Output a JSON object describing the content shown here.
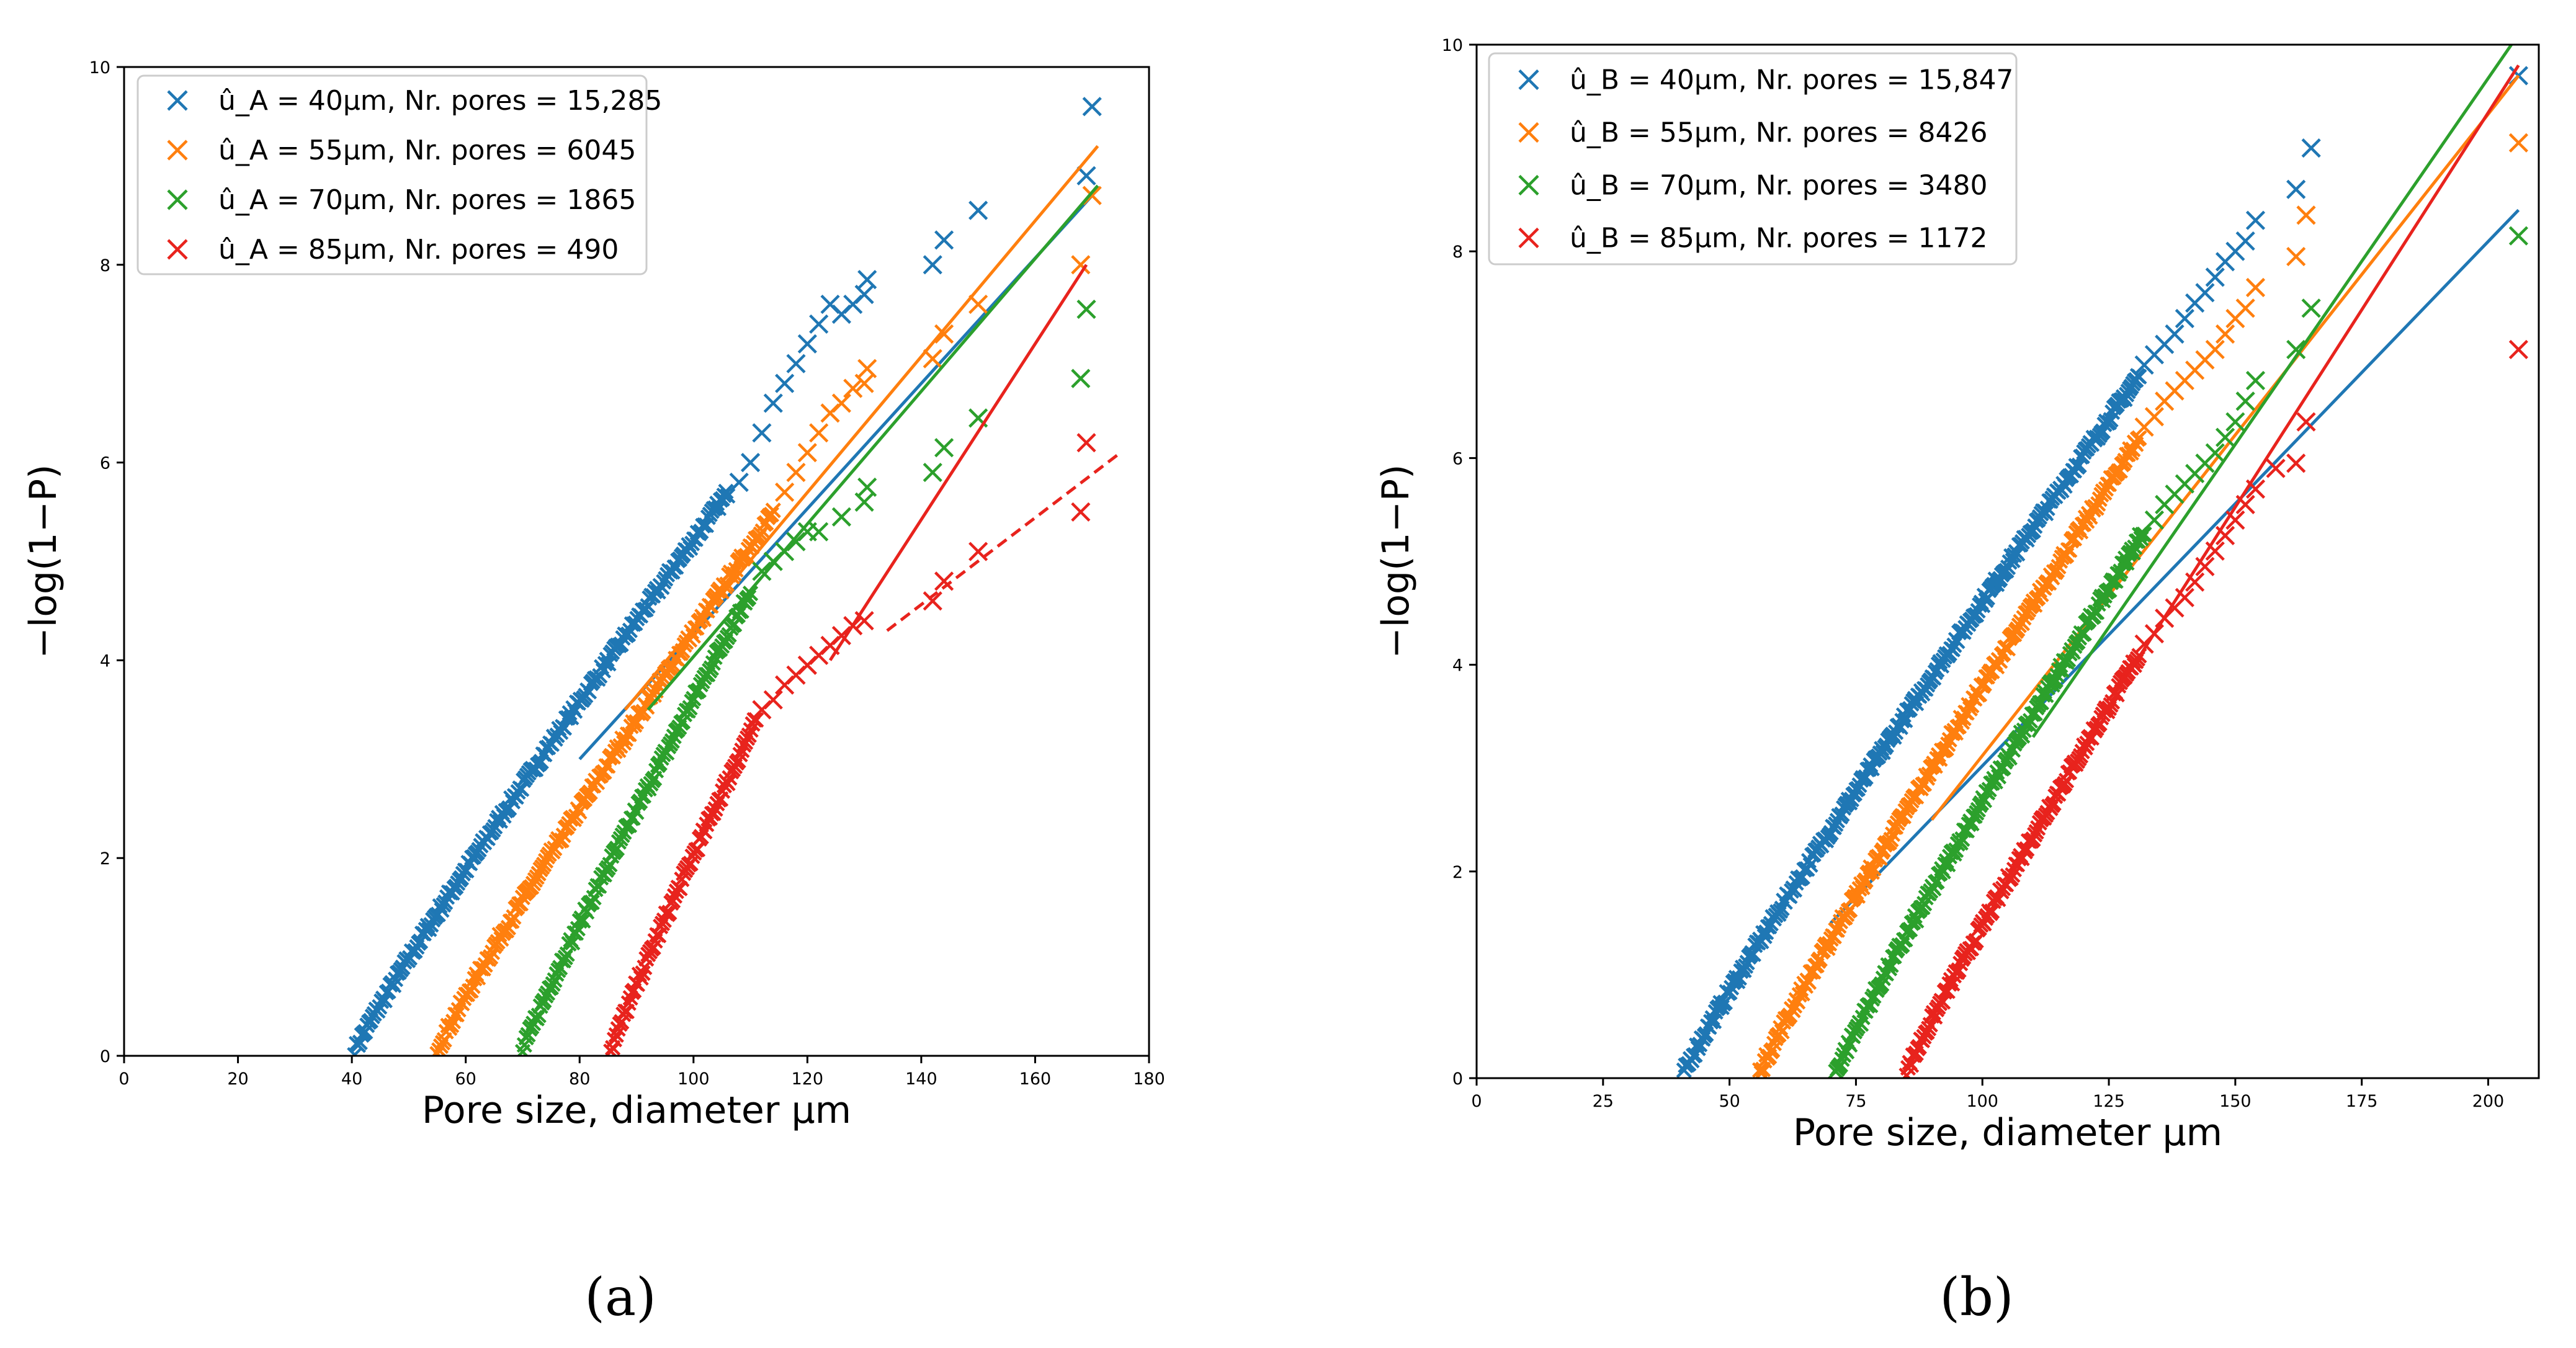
{
  "colors": {
    "blue": "#1f77b4",
    "orange": "#ff7f0e",
    "green": "#2ca02c",
    "red": "#e8231d"
  },
  "chart_data": [
    {
      "type": "scatter",
      "panel_label": "(a)",
      "xlabel": "Pore size, diameter μm",
      "ylabel": "−log(1−P)",
      "xlim": [
        0,
        180
      ],
      "ylim": [
        0,
        10
      ],
      "xticks": [
        0,
        20,
        40,
        60,
        80,
        100,
        120,
        140,
        160,
        180
      ],
      "yticks": [
        0,
        2,
        4,
        6,
        8,
        10
      ],
      "legend_position": "top-left",
      "grid": false,
      "series": [
        {
          "name": "û_A = 40μm, Nr. pores = 15,285",
          "color": "blue",
          "x_range": [
            40.5,
            106
          ],
          "y_at_start": 0.05,
          "y_at_end": 5.7,
          "sparse_points": [
            [
              108,
              5.8
            ],
            [
              110,
              6.0
            ],
            [
              112,
              6.3
            ],
            [
              114,
              6.6
            ],
            [
              116,
              6.8
            ],
            [
              118,
              7.0
            ],
            [
              120,
              7.2
            ],
            [
              122,
              7.4
            ],
            [
              124,
              7.6
            ],
            [
              126,
              7.5
            ],
            [
              128,
              7.6
            ],
            [
              130,
              7.7
            ],
            [
              130.5,
              7.85
            ],
            [
              142,
              8.0
            ],
            [
              144,
              8.25
            ],
            [
              150,
              8.55
            ],
            [
              169,
              8.9
            ],
            [
              170,
              9.6
            ]
          ],
          "fit": {
            "style": "solid",
            "from": [
              80,
              3.0
            ],
            "to": [
              170,
              8.7
            ]
          }
        },
        {
          "name": "û_A = 55μm, Nr. pores = 6045",
          "color": "orange",
          "x_range": [
            55,
            114
          ],
          "y_at_start": 0.05,
          "y_at_end": 5.5,
          "sparse_points": [
            [
              116,
              5.7
            ],
            [
              118,
              5.9
            ],
            [
              120,
              6.1
            ],
            [
              122,
              6.3
            ],
            [
              124,
              6.5
            ],
            [
              126,
              6.6
            ],
            [
              128,
              6.75
            ],
            [
              130,
              6.8
            ],
            [
              130.5,
              6.95
            ],
            [
              142,
              7.05
            ],
            [
              144,
              7.3
            ],
            [
              150,
              7.6
            ],
            [
              168,
              8.0
            ],
            [
              170,
              8.7
            ]
          ],
          "fit": {
            "style": "solid",
            "from": [
              88,
              3.5
            ],
            "to": [
              171,
              9.2
            ]
          }
        },
        {
          "name": "û_A = 70μm, Nr. pores = 1865",
          "color": "green",
          "x_range": [
            70,
            110
          ],
          "y_at_start": 0.05,
          "y_at_end": 4.7,
          "sparse_points": [
            [
              112,
              4.9
            ],
            [
              114,
              5.0
            ],
            [
              116,
              5.1
            ],
            [
              118,
              5.2
            ],
            [
              120,
              5.3
            ],
            [
              122,
              5.3
            ],
            [
              126,
              5.45
            ],
            [
              130,
              5.6
            ],
            [
              130.5,
              5.75
            ],
            [
              142,
              5.9
            ],
            [
              144,
              6.15
            ],
            [
              150,
              6.45
            ],
            [
              168,
              6.85
            ],
            [
              169,
              7.55
            ]
          ],
          "fit": {
            "style": "solid",
            "from": [
              92,
              3.5
            ],
            "to": [
              171,
              8.8
            ]
          }
        },
        {
          "name": "û_A = 85μm, Nr. pores = 490",
          "color": "red",
          "x_range": [
            85.5,
            111
          ],
          "y_at_start": 0.05,
          "y_at_end": 3.4,
          "sparse_points": [
            [
              112,
              3.5
            ],
            [
              114,
              3.6
            ],
            [
              116,
              3.75
            ],
            [
              118,
              3.85
            ],
            [
              120,
              3.95
            ],
            [
              122,
              4.05
            ],
            [
              124,
              4.15
            ],
            [
              126,
              4.25
            ],
            [
              128,
              4.35
            ],
            [
              130,
              4.4
            ],
            [
              142,
              4.6
            ],
            [
              144,
              4.8
            ],
            [
              150,
              5.1
            ],
            [
              168,
              5.5
            ],
            [
              169,
              6.2
            ]
          ],
          "fit": {
            "style": "solid",
            "from": [
              124,
              4.0
            ],
            "to": [
              169,
              8.0
            ]
          },
          "fit2": {
            "style": "dashed",
            "from": [
              134,
              4.3
            ],
            "to": [
              175,
              6.1
            ]
          }
        }
      ]
    },
    {
      "type": "scatter",
      "panel_label": "(b)",
      "xlabel": "Pore size, diameter μm",
      "ylabel": "−log(1−P)",
      "xlim": [
        0,
        210
      ],
      "ylim": [
        0,
        10
      ],
      "xticks": [
        0,
        25,
        50,
        75,
        100,
        125,
        150,
        175,
        200
      ],
      "yticks": [
        0,
        2,
        4,
        6,
        8,
        10
      ],
      "legend_position": "top-left",
      "grid": false,
      "series": [
        {
          "name": "û_B = 40μm, Nr. pores = 15,847",
          "color": "blue",
          "x_range": [
            41,
            131
          ],
          "y_at_start": 0.05,
          "y_at_end": 6.8,
          "sparse_points": [
            [
              132,
              6.9
            ],
            [
              134,
              7.0
            ],
            [
              136,
              7.1
            ],
            [
              138,
              7.2
            ],
            [
              140,
              7.35
            ],
            [
              142,
              7.5
            ],
            [
              144,
              7.6
            ],
            [
              146,
              7.75
            ],
            [
              148,
              7.9
            ],
            [
              150,
              8.0
            ],
            [
              152,
              8.1
            ],
            [
              154,
              8.3
            ],
            [
              162,
              8.6
            ],
            [
              165,
              9.0
            ],
            [
              206,
              9.7
            ]
          ],
          "fit": {
            "style": "solid",
            "from": [
              70,
              1.5
            ],
            "to": [
              206,
              8.4
            ]
          }
        },
        {
          "name": "û_B = 55μm, Nr. pores = 8426",
          "color": "orange",
          "x_range": [
            56,
            131
          ],
          "y_at_start": 0.05,
          "y_at_end": 6.2,
          "sparse_points": [
            [
              132,
              6.3
            ],
            [
              134,
              6.4
            ],
            [
              136,
              6.55
            ],
            [
              138,
              6.65
            ],
            [
              140,
              6.75
            ],
            [
              142,
              6.85
            ],
            [
              144,
              6.95
            ],
            [
              146,
              7.05
            ],
            [
              148,
              7.2
            ],
            [
              150,
              7.35
            ],
            [
              152,
              7.45
            ],
            [
              154,
              7.65
            ],
            [
              162,
              7.95
            ],
            [
              164,
              8.35
            ],
            [
              206,
              9.05
            ]
          ],
          "fit": {
            "style": "solid",
            "from": [
              90,
              2.5
            ],
            "to": [
              206,
              9.7
            ]
          }
        },
        {
          "name": "û_B = 70μm, Nr. pores = 3480",
          "color": "green",
          "x_range": [
            71,
            132
          ],
          "y_at_start": 0.05,
          "y_at_end": 5.3,
          "sparse_points": [
            [
              134,
              5.4
            ],
            [
              136,
              5.55
            ],
            [
              138,
              5.65
            ],
            [
              140,
              5.75
            ],
            [
              142,
              5.85
            ],
            [
              144,
              5.95
            ],
            [
              146,
              6.05
            ],
            [
              148,
              6.2
            ],
            [
              150,
              6.35
            ],
            [
              152,
              6.55
            ],
            [
              154,
              6.75
            ],
            [
              162,
              7.05
            ],
            [
              165,
              7.45
            ],
            [
              206,
              8.15
            ]
          ],
          "fit": {
            "style": "solid",
            "from": [
              110,
              3.3
            ],
            "to": [
              206,
              10.1
            ]
          }
        },
        {
          "name": "û_B = 85μm, Nr. pores = 1172",
          "color": "red",
          "x_range": [
            85,
            131
          ],
          "y_at_start": 0.05,
          "y_at_end": 4.1,
          "sparse_points": [
            [
              132,
              4.2
            ],
            [
              134,
              4.3
            ],
            [
              136,
              4.45
            ],
            [
              138,
              4.55
            ],
            [
              140,
              4.65
            ],
            [
              142,
              4.8
            ],
            [
              144,
              4.95
            ],
            [
              146,
              5.1
            ],
            [
              148,
              5.25
            ],
            [
              150,
              5.4
            ],
            [
              152,
              5.55
            ],
            [
              154,
              5.7
            ],
            [
              158,
              5.9
            ],
            [
              162,
              5.95
            ],
            [
              164,
              6.35
            ],
            [
              206,
              7.05
            ]
          ],
          "fit": {
            "style": "solid",
            "from": [
              130,
              4.0
            ],
            "to": [
              206,
              9.8
            ]
          }
        }
      ]
    }
  ]
}
